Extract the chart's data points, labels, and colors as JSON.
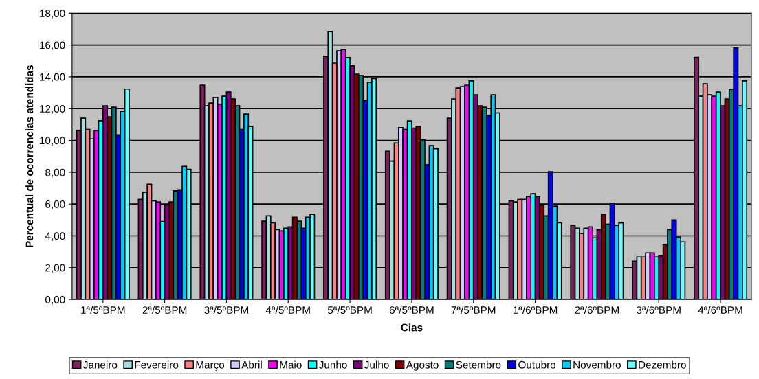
{
  "chart_data": {
    "type": "bar",
    "xlabel": "Cias",
    "ylabel": "Percentual de ocorrencias atendidas",
    "categories": [
      "1ª/5ºBPM",
      "2ª/5ºBPM",
      "3ª/5ºBPM",
      "4ª/5ºBPM",
      "5ª/5ºBPM",
      "6ª/5ºBPM",
      "7ª/5ºBPM",
      "1ª/6ºBPM",
      "2ª/6ºBPM",
      "3ª/6ºBPM",
      "4ª/6ºBPM"
    ],
    "series": [
      {
        "name": "Janeiro",
        "color": "#802060",
        "values": [
          10.63,
          6.3,
          13.48,
          4.92,
          15.29,
          9.32,
          11.4,
          6.21,
          4.66,
          2.41,
          15.22
        ]
      },
      {
        "name": "Fevereiro",
        "color": "#a0e0e0",
        "values": [
          11.4,
          6.74,
          12.18,
          5.26,
          16.86,
          8.7,
          12.61,
          6.13,
          4.48,
          2.67,
          12.78
        ]
      },
      {
        "name": "Março",
        "color": "#ff8080",
        "values": [
          10.69,
          7.25,
          12.35,
          4.82,
          14.86,
          9.84,
          13.3,
          6.3,
          4.14,
          2.67,
          13.56
        ]
      },
      {
        "name": "Abril",
        "color": "#ccccff",
        "values": [
          10.1,
          6.21,
          12.7,
          4.39,
          15.64,
          10.81,
          13.39,
          6.3,
          4.48,
          2.93,
          12.87
        ]
      },
      {
        "name": "Maio",
        "color": "#ff00ff",
        "values": [
          10.63,
          6.13,
          12.27,
          4.31,
          15.72,
          10.69,
          13.48,
          6.47,
          4.57,
          2.93,
          12.78
        ]
      },
      {
        "name": "Junho",
        "color": "#00ffff",
        "values": [
          11.24,
          4.9,
          12.78,
          4.48,
          15.21,
          11.23,
          13.74,
          6.65,
          3.88,
          2.67,
          13.04
        ]
      },
      {
        "name": "Julho",
        "color": "#800080",
        "values": [
          12.18,
          5.95,
          13.04,
          4.57,
          14.69,
          10.78,
          12.87,
          6.47,
          4.39,
          2.75,
          12.18
        ]
      },
      {
        "name": "Agosto",
        "color": "#800000",
        "values": [
          11.49,
          6.13,
          12.61,
          5.17,
          14.17,
          10.88,
          12.18,
          5.95,
          5.35,
          3.45,
          12.61
        ]
      },
      {
        "name": "Setembro",
        "color": "#008080",
        "values": [
          12.09,
          6.83,
          12.18,
          4.92,
          14.08,
          10.03,
          12.09,
          5.26,
          4.73,
          4.39,
          13.22
        ]
      },
      {
        "name": "Outubro",
        "color": "#0000ff",
        "values": [
          10.36,
          6.9,
          10.69,
          4.48,
          12.52,
          8.47,
          11.57,
          8.03,
          6.04,
          5.0,
          15.82
        ]
      },
      {
        "name": "Novembro",
        "color": "#00ccff",
        "values": [
          11.83,
          8.37,
          11.66,
          5.17,
          13.65,
          9.67,
          12.87,
          5.87,
          4.66,
          3.93,
          12.18
        ]
      },
      {
        "name": "Dezembro",
        "color": "#66ffff",
        "values": [
          13.23,
          8.18,
          10.88,
          5.35,
          13.89,
          9.48,
          11.73,
          4.82,
          4.81,
          3.62,
          13.74
        ]
      }
    ],
    "ylim": [
      0,
      18
    ],
    "yticks": [
      {
        "value": 0,
        "label": "0,00"
      },
      {
        "value": 2,
        "label": "2,00"
      },
      {
        "value": 4,
        "label": "4,00"
      },
      {
        "value": 6,
        "label": "6,00"
      },
      {
        "value": 8,
        "label": "8,00"
      },
      {
        "value": 10,
        "label": "10,00"
      },
      {
        "value": 12,
        "label": "12,00"
      },
      {
        "value": 14,
        "label": "14,00"
      },
      {
        "value": 16,
        "label": "16,00"
      },
      {
        "value": 18,
        "label": "18,00"
      }
    ],
    "grid": "y",
    "legend": "bottom"
  }
}
